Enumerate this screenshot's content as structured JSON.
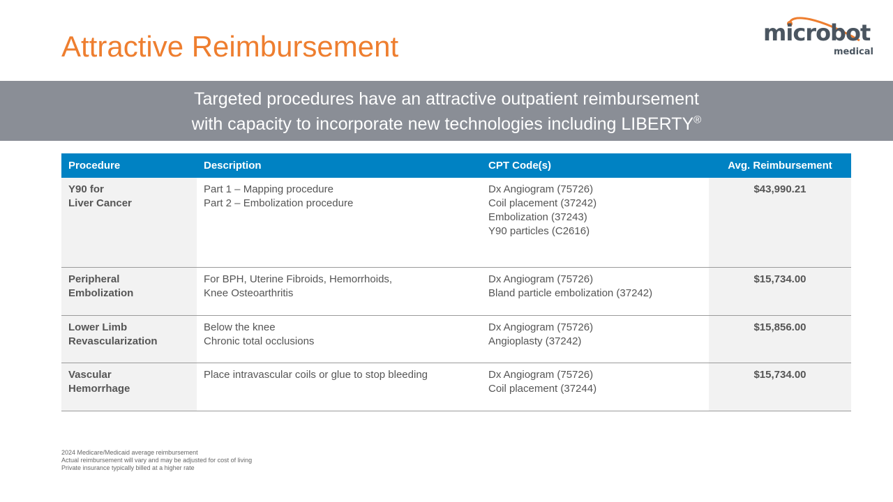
{
  "title": "Attractive Reimbursement",
  "logo": {
    "word": "microbot",
    "sub": "medical"
  },
  "banner": {
    "line1": "Targeted procedures have an attractive outpatient reimbursement",
    "line2": "with capacity to incorporate new technologies including LIBERTY",
    "mark": "®"
  },
  "table": {
    "headers": [
      "Procedure",
      "Description",
      "CPT Code(s)",
      "Avg. Reimbursement"
    ],
    "rows": [
      {
        "procedure": [
          "Y90 for",
          "Liver Cancer"
        ],
        "description": [
          "Part 1 – Mapping procedure",
          "Part 2 – Embolization procedure"
        ],
        "cpt": [
          "Dx Angiogram (75726)",
          "Coil placement (37242)",
          "Embolization (37243)",
          "Y90 particles (C2616)"
        ],
        "amount": "$43,990.21"
      },
      {
        "procedure": [
          "Peripheral",
          "Embolization"
        ],
        "description": [
          "For BPH, Uterine Fibroids, Hemorrhoids,",
          "Knee Osteoarthritis"
        ],
        "cpt": [
          "Dx Angiogram (75726)",
          "Bland particle embolization (37242)"
        ],
        "amount": "$15,734.00"
      },
      {
        "procedure": [
          "Lower Limb",
          "Revascularization"
        ],
        "description": [
          "Below the knee",
          "Chronic total occlusions"
        ],
        "cpt": [
          "Dx Angiogram (75726)",
          "Angioplasty (37242)"
        ],
        "amount": "$15,856.00"
      },
      {
        "procedure": [
          "Vascular",
          "Hemorrhage"
        ],
        "description": [
          "Place intravascular coils or glue to stop bleeding"
        ],
        "cpt": [
          "Dx Angiogram (75726)",
          "Coil placement (37244)"
        ],
        "amount": "$15,734.00"
      }
    ]
  },
  "footnotes": [
    "2024 Medicare/Medicaid average reimbursement",
    "Actual reimbursement will vary and may be adjusted for cost of living",
    "Private insurance typically billed at a higher rate"
  ]
}
